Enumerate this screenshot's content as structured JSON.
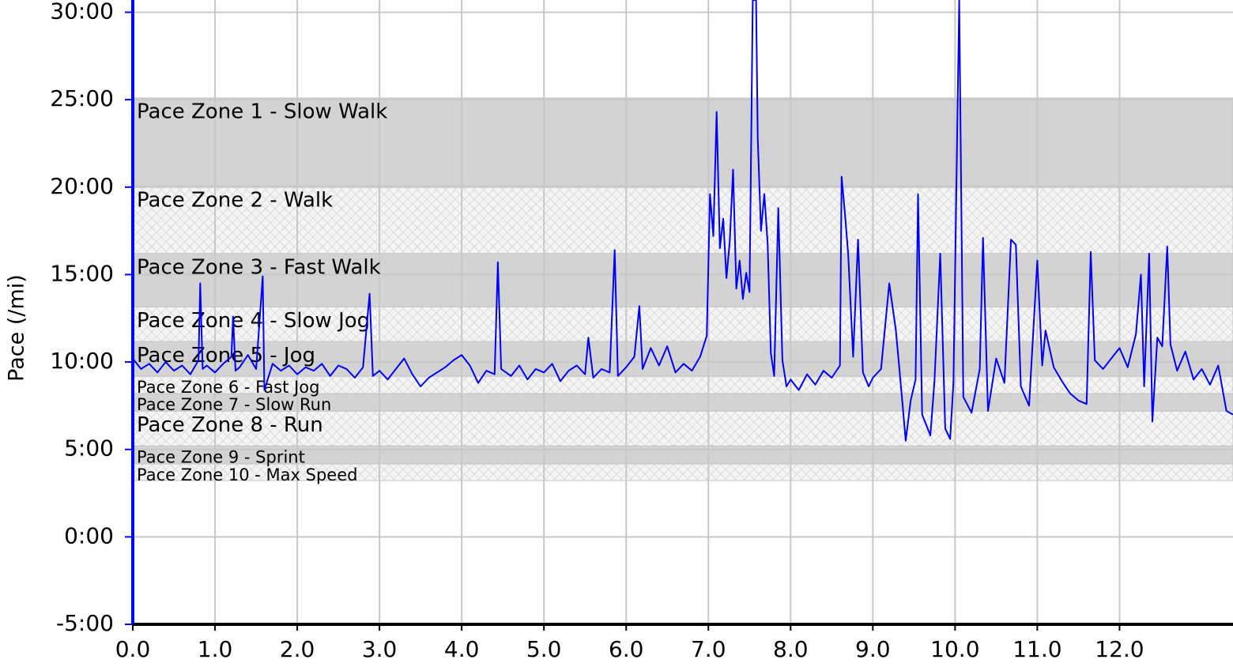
{
  "chart_data": {
    "type": "line",
    "ylabel": "Pace (/mi)",
    "xlim": [
      0,
      13.38
    ],
    "xticks": [
      {
        "value": 0,
        "label": "0.0"
      },
      {
        "value": 1,
        "label": "1.0"
      },
      {
        "value": 2,
        "label": "2.0"
      },
      {
        "value": 3,
        "label": "3.0"
      },
      {
        "value": 4,
        "label": "4.0"
      },
      {
        "value": 5,
        "label": "5.0"
      },
      {
        "value": 6,
        "label": "6.0"
      },
      {
        "value": 7,
        "label": "7.0"
      },
      {
        "value": 8,
        "label": "8.0"
      },
      {
        "value": 9,
        "label": "9.0"
      },
      {
        "value": 10,
        "label": "10.0"
      },
      {
        "value": 11,
        "label": "11.0"
      },
      {
        "value": 12,
        "label": "12.0"
      }
    ],
    "ylim": [
      -5,
      30.7
    ],
    "yticks": [
      {
        "value": -5,
        "label": "-5:00"
      },
      {
        "value": 0,
        "label": "0:00"
      },
      {
        "value": 5,
        "label": "5:00"
      },
      {
        "value": 10,
        "label": "10:00"
      },
      {
        "value": 15,
        "label": "15:00"
      },
      {
        "value": 20,
        "label": "20:00"
      },
      {
        "value": 25,
        "label": "25:00"
      },
      {
        "value": 30,
        "label": "30:00"
      }
    ],
    "grid": true,
    "zones": [
      {
        "name": "Pace Zone 1 - Slow Walk",
        "low": 20.05,
        "high": 25.1
      },
      {
        "name": "Pace Zone 2 - Walk",
        "low": 16.2,
        "high": 20.05
      },
      {
        "name": "Pace Zone 3 - Fast Walk",
        "low": 13.15,
        "high": 16.2
      },
      {
        "name": "Pace Zone 4 - Slow Jog",
        "low": 11.17,
        "high": 13.15
      },
      {
        "name": "Pace Zone 5 - Jog",
        "low": 9.18,
        "high": 11.17
      },
      {
        "name": "Pace Zone 6 - Fast Jog",
        "low": 8.19,
        "high": 9.18
      },
      {
        "name": "Pace Zone 7 - Slow Run",
        "low": 7.19,
        "high": 8.19
      },
      {
        "name": "Pace Zone 8 - Run",
        "low": 5.2,
        "high": 7.19
      },
      {
        "name": "Pace Zone 9 - Sprint",
        "low": 4.17,
        "high": 5.2
      },
      {
        "name": "Pace Zone 10 - Max Speed",
        "low": 3.22,
        "high": 4.17
      }
    ],
    "color": "#0000ff",
    "x": [
      0.0,
      0.1,
      0.2,
      0.3,
      0.4,
      0.5,
      0.6,
      0.7,
      0.8,
      0.82,
      0.85,
      0.9,
      1.0,
      1.1,
      1.2,
      1.22,
      1.25,
      1.3,
      1.4,
      1.5,
      1.58,
      1.6,
      1.7,
      1.8,
      1.9,
      2.0,
      2.1,
      2.2,
      2.3,
      2.4,
      2.5,
      2.6,
      2.7,
      2.8,
      2.88,
      2.92,
      3.0,
      3.1,
      3.2,
      3.3,
      3.4,
      3.5,
      3.6,
      3.7,
      3.8,
      3.9,
      4.0,
      4.1,
      4.2,
      4.3,
      4.4,
      4.44,
      4.48,
      4.6,
      4.7,
      4.8,
      4.9,
      5.0,
      5.1,
      5.2,
      5.3,
      5.4,
      5.5,
      5.54,
      5.6,
      5.7,
      5.8,
      5.86,
      5.9,
      6.0,
      6.1,
      6.16,
      6.2,
      6.3,
      6.4,
      6.5,
      6.6,
      6.7,
      6.8,
      6.9,
      6.98,
      7.02,
      7.06,
      7.1,
      7.14,
      7.18,
      7.22,
      7.26,
      7.3,
      7.34,
      7.38,
      7.42,
      7.46,
      7.5,
      7.54,
      7.58,
      7.6,
      7.64,
      7.68,
      7.72,
      7.76,
      7.8,
      7.85,
      7.9,
      7.95,
      8.0,
      8.1,
      8.2,
      8.3,
      8.4,
      8.5,
      8.6,
      8.62,
      8.66,
      8.7,
      8.76,
      8.82,
      8.88,
      8.95,
      9.0,
      9.1,
      9.2,
      9.28,
      9.35,
      9.4,
      9.46,
      9.52,
      9.55,
      9.6,
      9.7,
      9.75,
      9.82,
      9.88,
      9.94,
      9.98,
      10.05,
      10.1,
      10.2,
      10.3,
      10.34,
      10.4,
      10.5,
      10.6,
      10.68,
      10.74,
      10.8,
      10.9,
      11.0,
      11.06,
      11.1,
      11.2,
      11.3,
      11.4,
      11.5,
      11.6,
      11.65,
      11.7,
      11.8,
      11.9,
      12.0,
      12.1,
      12.2,
      12.26,
      12.3,
      12.36,
      12.4,
      12.46,
      12.52,
      12.58,
      12.62,
      12.7,
      12.8,
      12.9,
      13.0,
      13.1,
      13.2,
      13.3,
      13.38
    ],
    "values": [
      10.2,
      9.6,
      9.9,
      9.4,
      10.0,
      9.5,
      9.8,
      9.3,
      10.1,
      14.5,
      9.6,
      9.8,
      9.4,
      9.9,
      10.3,
      12.6,
      9.5,
      9.7,
      10.4,
      9.6,
      14.9,
      8.4,
      9.9,
      9.5,
      9.8,
      9.3,
      9.7,
      9.5,
      9.9,
      9.2,
      9.8,
      9.6,
      9.1,
      9.7,
      13.9,
      9.2,
      9.5,
      9.0,
      9.6,
      10.2,
      9.3,
      8.6,
      9.1,
      9.4,
      9.7,
      10.1,
      10.4,
      9.8,
      8.8,
      9.5,
      9.3,
      15.7,
      9.6,
      9.2,
      9.8,
      9.0,
      9.6,
      9.4,
      9.9,
      8.9,
      9.5,
      9.8,
      9.3,
      11.4,
      9.1,
      9.6,
      9.4,
      16.4,
      9.2,
      9.7,
      10.3,
      13.2,
      9.6,
      10.8,
      9.8,
      10.9,
      9.4,
      9.9,
      9.5,
      10.3,
      11.5,
      19.6,
      17.2,
      24.3,
      16.5,
      18.2,
      14.8,
      16.9,
      21.0,
      14.2,
      15.8,
      13.6,
      15.1,
      14.0,
      30.7,
      30.7,
      22.8,
      17.5,
      19.6,
      16.8,
      10.5,
      9.2,
      18.8,
      10.1,
      8.6,
      9.0,
      8.4,
      9.3,
      8.7,
      9.5,
      9.1,
      9.8,
      20.6,
      18.5,
      16.2,
      10.3,
      17.0,
      9.4,
      8.6,
      9.1,
      9.6,
      14.5,
      11.8,
      8.2,
      5.5,
      7.8,
      9.0,
      19.6,
      7.0,
      5.8,
      8.9,
      16.2,
      6.2,
      5.6,
      8.8,
      30.7,
      8.0,
      7.1,
      9.6,
      17.1,
      7.2,
      10.2,
      8.8,
      17.0,
      16.7,
      8.6,
      7.5,
      15.8,
      9.8,
      11.8,
      9.7,
      8.9,
      8.2,
      7.8,
      7.6,
      16.3,
      10.1,
      9.6,
      10.2,
      10.8,
      9.7,
      11.6,
      15.0,
      8.6,
      16.2,
      6.6,
      11.4,
      10.9,
      16.6,
      11.0,
      9.5,
      10.6,
      9.0,
      9.6,
      8.7,
      9.8,
      7.2,
      7.0
    ]
  }
}
